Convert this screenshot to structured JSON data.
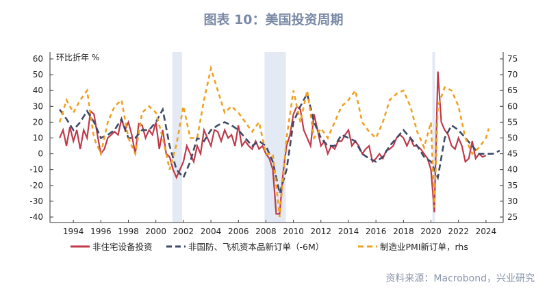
{
  "title": "图表 10：美国投资周期",
  "source": "资料来源：Macrobond，兴业研究",
  "chart_data": {
    "type": "line",
    "ylabel_left": "环比折年 %",
    "ylim_left": [
      -40,
      60
    ],
    "yticks_left": [
      -40,
      -30,
      -20,
      -10,
      0,
      10,
      20,
      30,
      40,
      50,
      60
    ],
    "ylim_right": [
      25,
      75
    ],
    "yticks_right": [
      25,
      30,
      35,
      40,
      45,
      50,
      55,
      60,
      65,
      70,
      75
    ],
    "xlim": [
      1992.3,
      2025.25
    ],
    "xticks": [
      1994,
      1996,
      1998,
      2000,
      2002,
      2004,
      2006,
      2008,
      2010,
      2012,
      2014,
      2016,
      2018,
      2020,
      2022,
      2024
    ],
    "recessions": [
      [
        2001.2,
        2001.9
      ],
      [
        2007.9,
        2009.45
      ],
      [
        2020.1,
        2020.3
      ]
    ],
    "series": [
      {
        "name": "非住宅设备投资",
        "axis": "left",
        "color": "#c0394a",
        "style": "solid",
        "x": [
          1993,
          1993.25,
          1993.5,
          1993.75,
          1994,
          1994.25,
          1994.5,
          1994.75,
          1995,
          1995.25,
          1995.5,
          1995.75,
          1996,
          1996.25,
          1996.5,
          1996.75,
          1997,
          1997.25,
          1997.5,
          1997.75,
          1998,
          1998.25,
          1998.5,
          1998.75,
          1999,
          1999.25,
          1999.5,
          1999.75,
          2000,
          2000.25,
          2000.5,
          2000.75,
          2001,
          2001.25,
          2001.5,
          2001.75,
          2002,
          2002.25,
          2002.5,
          2002.75,
          2003,
          2003.25,
          2003.5,
          2003.75,
          2004,
          2004.25,
          2004.5,
          2004.75,
          2005,
          2005.25,
          2005.5,
          2005.75,
          2006,
          2006.25,
          2006.5,
          2006.75,
          2007,
          2007.25,
          2007.5,
          2007.75,
          2008,
          2008.25,
          2008.5,
          2008.75,
          2009,
          2009.25,
          2009.5,
          2009.75,
          2010,
          2010.25,
          2010.5,
          2010.75,
          2011,
          2011.25,
          2011.5,
          2011.75,
          2012,
          2012.25,
          2012.5,
          2012.75,
          2013,
          2013.25,
          2013.5,
          2013.75,
          2014,
          2014.25,
          2014.5,
          2014.75,
          2015,
          2015.25,
          2015.5,
          2015.75,
          2016,
          2016.25,
          2016.5,
          2016.75,
          2017,
          2017.25,
          2017.5,
          2017.75,
          2018,
          2018.25,
          2018.5,
          2018.75,
          2019,
          2019.25,
          2019.5,
          2019.75,
          2020,
          2020.25,
          2020.5,
          2020.75,
          2021,
          2021.25,
          2021.5,
          2021.75,
          2022,
          2022.25,
          2022.5,
          2022.75,
          2023,
          2023.25,
          2023.5,
          2023.75,
          2024
        ],
        "values": [
          10,
          15,
          5,
          17,
          8,
          15,
          3,
          15,
          10,
          27,
          25,
          12,
          0,
          3,
          10,
          12,
          14,
          12,
          22,
          15,
          20,
          12,
          0,
          19,
          18,
          10,
          15,
          12,
          20,
          3,
          15,
          0,
          -2,
          -10,
          -15,
          -10,
          -5,
          5,
          0,
          -5,
          5,
          0,
          15,
          10,
          5,
          15,
          14,
          8,
          15,
          10,
          12,
          5,
          18,
          5,
          8,
          5,
          3,
          8,
          3,
          5,
          0,
          -3,
          -10,
          -38,
          -38,
          -12,
          5,
          12,
          25,
          30,
          28,
          15,
          10,
          5,
          25,
          15,
          5,
          8,
          0,
          5,
          3,
          8,
          8,
          12,
          15,
          5,
          8,
          5,
          0,
          3,
          5,
          -5,
          -3,
          0,
          -3,
          2,
          3,
          5,
          10,
          12,
          10,
          5,
          10,
          5,
          5,
          3,
          0,
          -3,
          -10,
          -37,
          52,
          20,
          15,
          12,
          5,
          3,
          10,
          5,
          -5,
          -3,
          8,
          -3,
          0,
          -2,
          -1
        ]
      },
      {
        "name": "非国防、飞机资本品新订单（-6M）",
        "axis": "left",
        "color": "#3c4a66",
        "style": "dash",
        "x": [
          1993,
          1993.5,
          1994,
          1994.5,
          1995,
          1995.5,
          1996,
          1996.5,
          1997,
          1997.5,
          1998,
          1998.5,
          1999,
          1999.5,
          2000,
          2000.5,
          2001,
          2001.5,
          2002,
          2002.5,
          2003,
          2003.5,
          2004,
          2004.5,
          2005,
          2005.5,
          2006,
          2006.5,
          2007,
          2007.5,
          2008,
          2008.5,
          2009,
          2009.5,
          2010,
          2010.5,
          2011,
          2011.5,
          2012,
          2012.5,
          2013,
          2013.5,
          2014,
          2014.5,
          2015,
          2015.5,
          2016,
          2016.5,
          2017,
          2017.5,
          2018,
          2018.5,
          2019,
          2019.5,
          2020,
          2020.5,
          2021,
          2021.5,
          2022,
          2022.5,
          2023,
          2023.5,
          2024,
          2024.5,
          2025
        ],
        "values": [
          28,
          22,
          15,
          20,
          27,
          20,
          10,
          12,
          15,
          22,
          10,
          10,
          15,
          15,
          20,
          28,
          5,
          -10,
          -15,
          -5,
          10,
          8,
          15,
          18,
          20,
          18,
          15,
          10,
          5,
          8,
          5,
          -5,
          -25,
          -10,
          20,
          30,
          38,
          20,
          10,
          5,
          5,
          12,
          10,
          8,
          0,
          -3,
          -5,
          -2,
          5,
          10,
          15,
          10,
          5,
          -2,
          -5,
          -15,
          10,
          18,
          15,
          10,
          5,
          0,
          0,
          0,
          2
        ]
      },
      {
        "name": "制造业PMI新订单，rhs",
        "axis": "right",
        "color": "#f0a020",
        "style": "dash",
        "x": [
          1993,
          1993.5,
          1994,
          1994.5,
          1995,
          1995.5,
          1996,
          1996.5,
          1997,
          1997.5,
          1998,
          1998.5,
          1999,
          1999.5,
          2000,
          2000.5,
          2001,
          2001.5,
          2002,
          2002.5,
          2003,
          2003.5,
          2004,
          2004.5,
          2005,
          2005.5,
          2006,
          2006.5,
          2007,
          2007.5,
          2008,
          2008.5,
          2009,
          2009.5,
          2010,
          2010.5,
          2011,
          2011.5,
          2012,
          2012.5,
          2013,
          2013.5,
          2014,
          2014.5,
          2015,
          2015.5,
          2016,
          2016.5,
          2017,
          2017.5,
          2018,
          2018.5,
          2019,
          2019.5,
          2020,
          2020.25,
          2020.5,
          2021,
          2021.5,
          2022,
          2022.5,
          2023,
          2023.5,
          2024,
          2024.2
        ],
        "values": [
          55,
          62,
          58,
          62,
          65,
          50,
          45,
          55,
          60,
          62,
          50,
          45,
          58,
          60,
          58,
          50,
          40,
          48,
          60,
          50,
          50,
          62,
          72,
          65,
          58,
          60,
          58,
          55,
          52,
          55,
          45,
          45,
          25,
          50,
          65,
          55,
          65,
          50,
          53,
          50,
          55,
          60,
          62,
          65,
          55,
          52,
          50,
          55,
          62,
          64,
          65,
          60,
          52,
          47,
          55,
          28,
          60,
          66,
          65,
          60,
          50,
          45,
          47,
          50,
          53
        ]
      }
    ]
  },
  "legend": [
    "非住宅设备投资",
    "非国防、飞机资本品新订单（-6M）",
    "制造业PMI新订单，rhs"
  ]
}
